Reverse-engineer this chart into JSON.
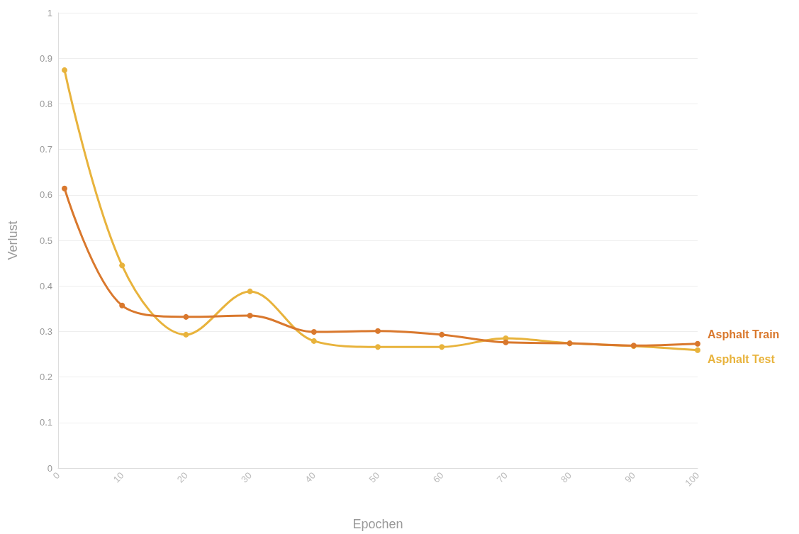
{
  "chart_data": {
    "type": "line",
    "xlabel": "Epochen",
    "ylabel": "Verlust",
    "x": [
      1,
      10,
      20,
      30,
      40,
      50,
      60,
      70,
      80,
      90,
      100
    ],
    "series": [
      {
        "name": "Asphalt Train",
        "color": "#d9782d",
        "values": [
          0.614,
          0.357,
          0.332,
          0.335,
          0.299,
          0.301,
          0.293,
          0.276,
          0.274,
          0.269,
          0.273
        ]
      },
      {
        "name": "Asphalt Test",
        "color": "#e8b33c",
        "values": [
          0.874,
          0.445,
          0.293,
          0.388,
          0.279,
          0.266,
          0.266,
          0.285,
          0.274,
          0.268,
          0.259
        ]
      }
    ],
    "xlim": [
      0,
      100
    ],
    "xticks": [
      0,
      10,
      20,
      30,
      40,
      50,
      60,
      70,
      80,
      90,
      100
    ],
    "ylim": [
      0,
      1
    ],
    "yticks": [
      0,
      0.1,
      0.2,
      0.3,
      0.4,
      0.5,
      0.6,
      0.7,
      0.8,
      0.9,
      1
    ],
    "grid": "y",
    "legend": false,
    "marker": "circle",
    "line_style": "solid"
  }
}
